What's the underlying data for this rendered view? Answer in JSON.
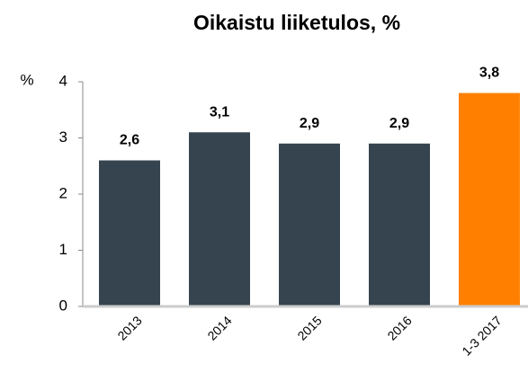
{
  "chart_data": {
    "type": "bar",
    "title": "Oikaistu liiketulos, %",
    "ylabel": "%",
    "categories": [
      "2013",
      "2014",
      "2015",
      "2016",
      "1-3 2017"
    ],
    "values": [
      2.6,
      3.1,
      2.9,
      2.9,
      3.8
    ],
    "value_labels": [
      "2,6",
      "3,1",
      "2,9",
      "2,9",
      "3,8"
    ],
    "colors": [
      "#36444f",
      "#36444f",
      "#36444f",
      "#36444f",
      "#ff8000"
    ],
    "ylim": [
      0,
      4
    ],
    "yticks": [
      0,
      1,
      2,
      3,
      4
    ],
    "grid": false
  }
}
